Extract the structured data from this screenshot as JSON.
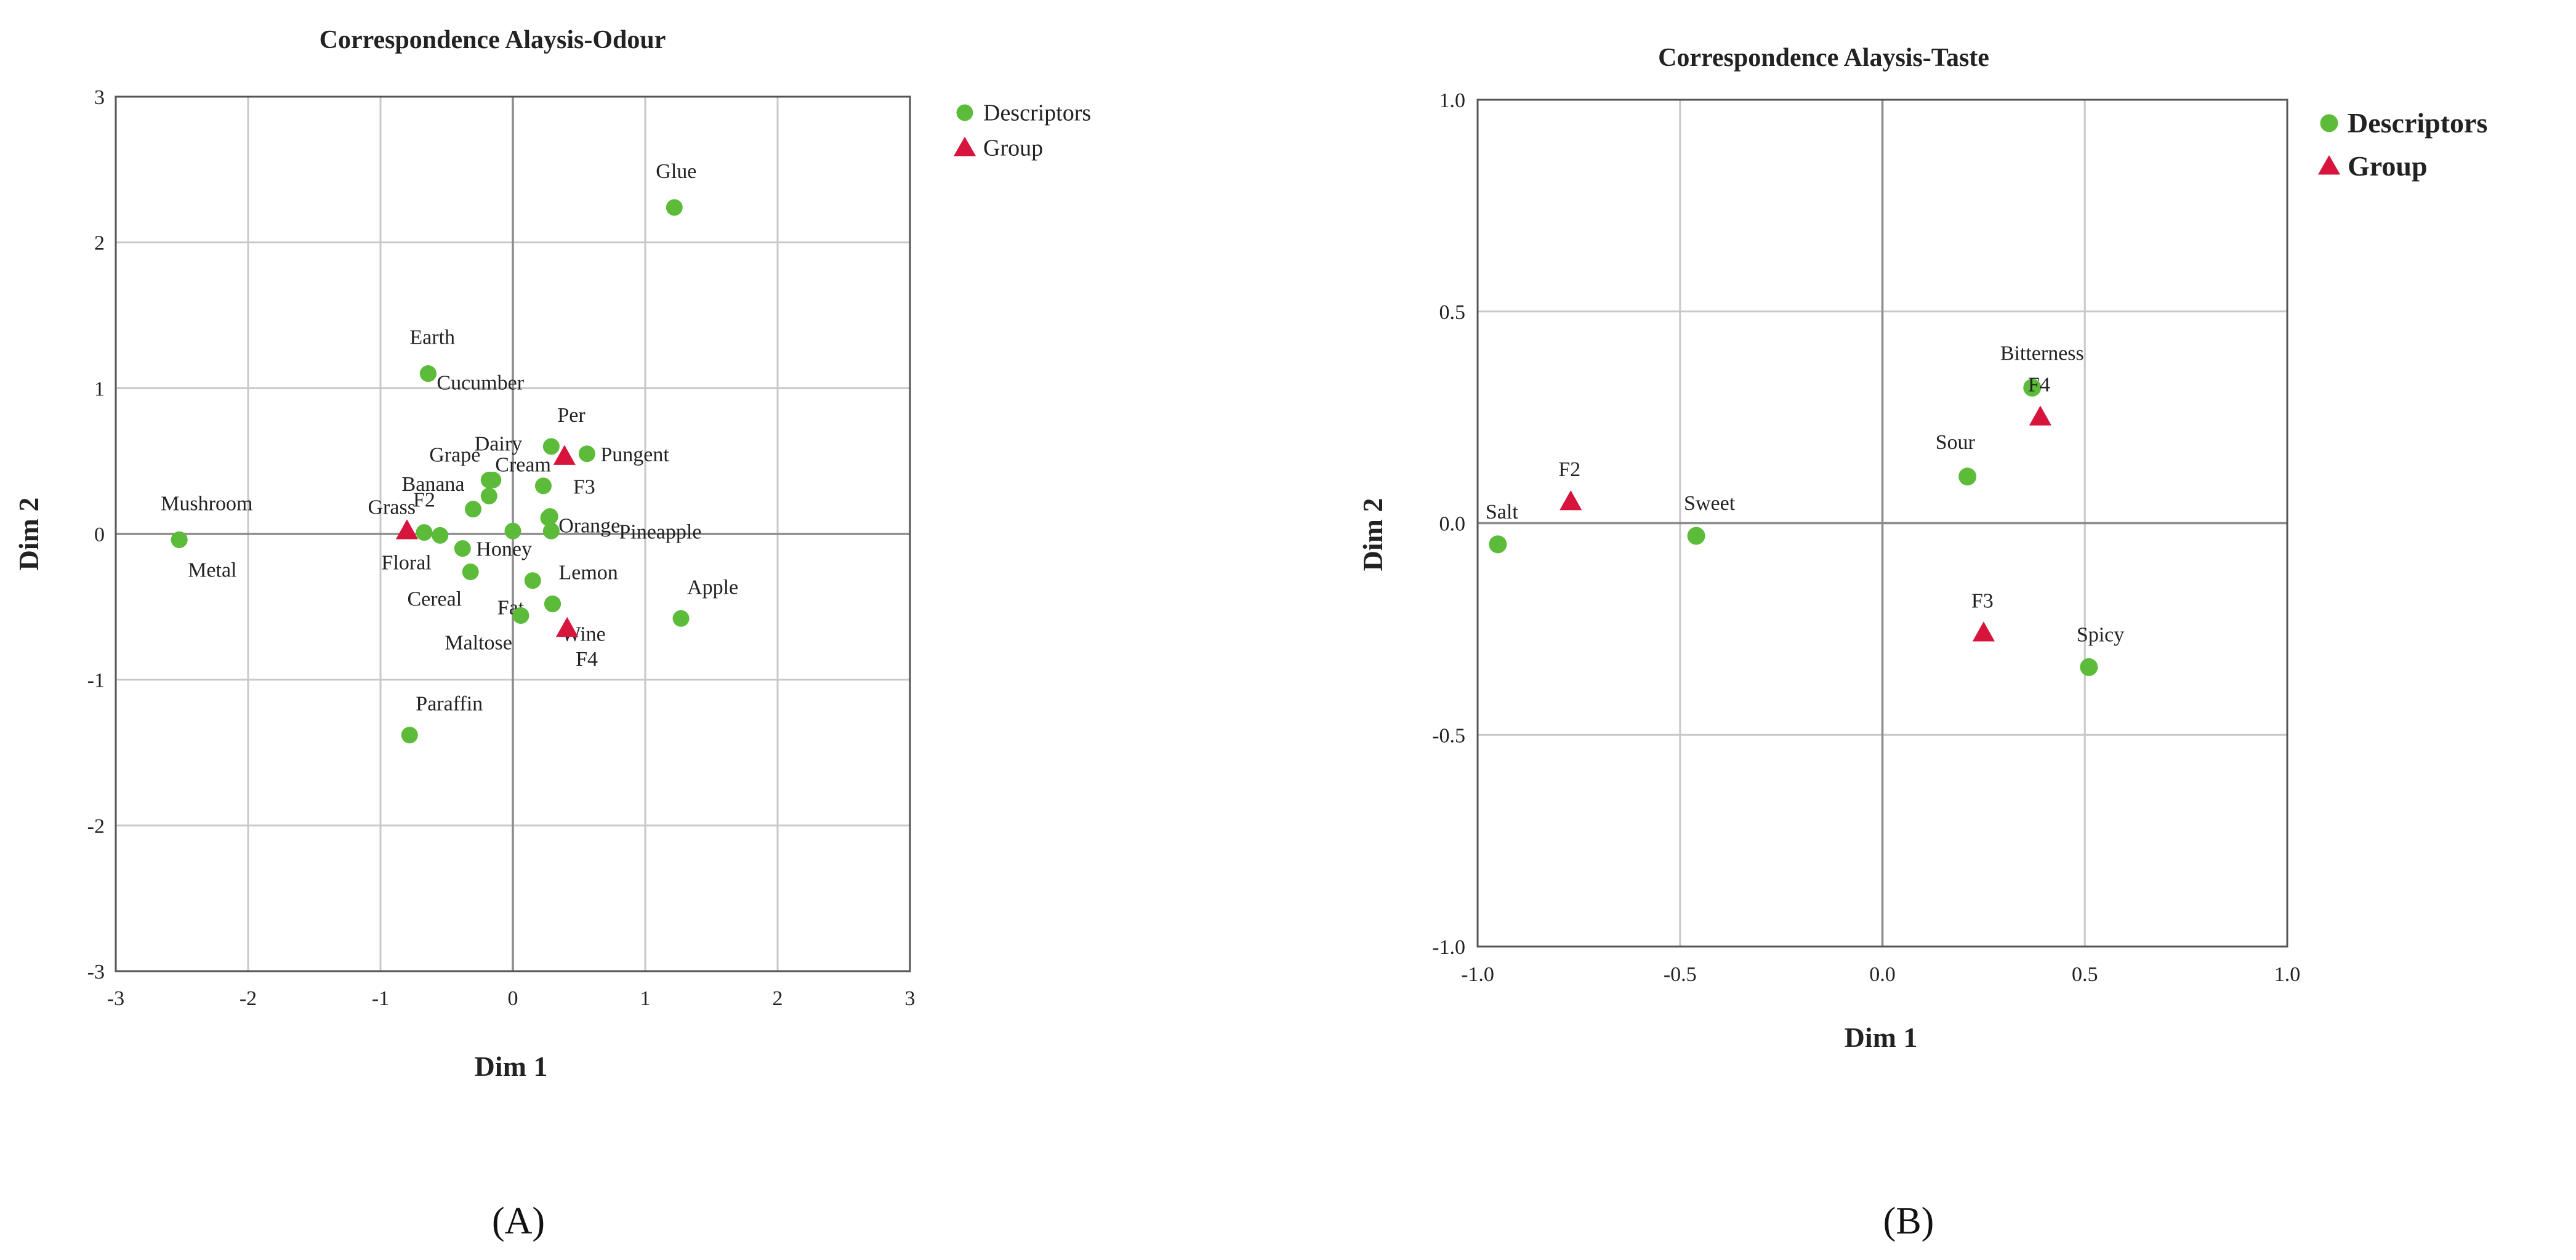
{
  "colors": {
    "descriptor": "#5dbb3a",
    "group": "#d6143c"
  },
  "panel_labels": {
    "a": "(A)",
    "b": "(B)"
  },
  "chart_data": [
    {
      "type": "scatter",
      "title": "Correspondence Alaysis-Odour",
      "xlabel": "Dim 1",
      "ylabel": "Dim 2",
      "xlim": [
        -3,
        3
      ],
      "ylim": [
        -3,
        3
      ],
      "xticks": [
        "-3",
        "-2",
        "-1",
        "0",
        "1",
        "2",
        "3"
      ],
      "yticks": [
        "3",
        "2",
        "1",
        "0",
        "-1",
        "-2",
        "-3"
      ],
      "legend": {
        "position": "top-right",
        "entries": [
          "Descriptors",
          "Group"
        ]
      },
      "series": [
        {
          "name": "Descriptors",
          "marker": "circle",
          "points": [
            {
              "label": "Glue",
              "x": 1.22,
              "y": 2.24,
              "anchor": "above"
            },
            {
              "label": "Earth",
              "x": -0.64,
              "y": 1.1,
              "anchor": "above"
            },
            {
              "label": "Cucumber",
              "x": -0.64,
              "y": 1.1,
              "anchor": "right-below"
            },
            {
              "label": "Per",
              "x": 0.29,
              "y": 0.6,
              "anchor": "above-right"
            },
            {
              "label": "Pungent",
              "x": 0.56,
              "y": 0.55,
              "anchor": "right"
            },
            {
              "label": "Dairy",
              "x": -0.15,
              "y": 0.37,
              "anchor": "above"
            },
            {
              "label": "Cream",
              "x": -0.18,
              "y": 0.26,
              "anchor": "above-right"
            },
            {
              "label": "Grape",
              "x": -0.18,
              "y": 0.37,
              "anchor": "above-left"
            },
            {
              "label": "Banana",
              "x": -0.3,
              "y": 0.17,
              "anchor": "above-left"
            },
            {
              "label": "Grass",
              "x": -0.67,
              "y": 0.01,
              "anchor": "above-left"
            },
            {
              "label": "Mushroom",
              "x": -2.52,
              "y": -0.04,
              "anchor": "above"
            },
            {
              "label": "Metal",
              "x": -2.52,
              "y": -0.04,
              "anchor": "below-right"
            },
            {
              "label": "Orange",
              "x": 0.28,
              "y": 0.12,
              "anchor": "right-below"
            },
            {
              "label": "Pineapple",
              "x": 0.29,
              "y": 0.02,
              "anchor": "far-right"
            },
            {
              "label": "Floral",
              "x": -0.55,
              "y": -0.01,
              "anchor": "below-left"
            },
            {
              "label": "Honey",
              "x": -0.38,
              "y": -0.1,
              "anchor": "right"
            },
            {
              "label": "Cereal",
              "x": -0.32,
              "y": -0.26,
              "anchor": "below-left"
            },
            {
              "label": "Fat",
              "x": 0.15,
              "y": -0.32,
              "anchor": "below-left"
            },
            {
              "label": "Lemon",
              "x": 0.3,
              "y": -0.48,
              "anchor": "above-right"
            },
            {
              "label": "Wine",
              "x": 0.3,
              "y": -0.48,
              "anchor": "below-right"
            },
            {
              "label": "Maltose",
              "x": 0.06,
              "y": -0.56,
              "anchor": "below-left"
            },
            {
              "label": "Apple",
              "x": 1.27,
              "y": -0.58,
              "anchor": "above-right"
            },
            {
              "label": "Paraffin",
              "x": -0.78,
              "y": -1.38,
              "anchor": "above-right"
            },
            {
              "label": "",
              "x": 0.0,
              "y": 0.02,
              "anchor": "none"
            },
            {
              "label": "",
              "x": 0.23,
              "y": 0.33,
              "anchor": "none"
            },
            {
              "label": "",
              "x": 0.27,
              "y": 0.11,
              "anchor": "none"
            }
          ]
        },
        {
          "name": "Group",
          "marker": "triangle",
          "points": [
            {
              "label": "F2",
              "x": -0.8,
              "y": 0.02,
              "anchor": "above-right"
            },
            {
              "label": "F3",
              "x": 0.39,
              "y": 0.53,
              "anchor": "below-right"
            },
            {
              "label": "F4",
              "x": 0.41,
              "y": -0.65,
              "anchor": "below-right"
            }
          ]
        }
      ]
    },
    {
      "type": "scatter",
      "title": "Correspondence Alaysis-Taste",
      "xlabel": "Dim 1",
      "ylabel": "Dim 2",
      "xlim": [
        -1.0,
        1.0
      ],
      "ylim": [
        -1.0,
        1.0
      ],
      "xticks": [
        "-1.0",
        "-0.5",
        "0.0",
        "0.5",
        "1.0"
      ],
      "yticks": [
        "1.0",
        "0.5",
        "0.0",
        "-0.5",
        "-1.0"
      ],
      "legend": {
        "position": "top-right",
        "entries": [
          "Descriptors",
          "Group"
        ]
      },
      "series": [
        {
          "name": "Descriptors",
          "marker": "circle",
          "points": [
            {
              "label": "Bitterness",
              "x": 0.37,
              "y": 0.32,
              "anchor": "above"
            },
            {
              "label": "Sour",
              "x": 0.21,
              "y": 0.11,
              "anchor": "above"
            },
            {
              "label": "Sweet",
              "x": -0.46,
              "y": -0.03,
              "anchor": "above-right"
            },
            {
              "label": "Salt",
              "x": -0.95,
              "y": -0.05,
              "anchor": "above-right"
            },
            {
              "label": "Spicy",
              "x": 0.51,
              "y": -0.34,
              "anchor": "above-right"
            }
          ]
        },
        {
          "name": "Group",
          "marker": "triangle",
          "points": [
            {
              "label": "F2",
              "x": -0.77,
              "y": 0.05,
              "anchor": "above-right"
            },
            {
              "label": "F4",
              "x": 0.39,
              "y": 0.25,
              "anchor": "above-right"
            },
            {
              "label": "F3",
              "x": 0.25,
              "y": -0.26,
              "anchor": "above-right"
            }
          ]
        }
      ]
    }
  ]
}
